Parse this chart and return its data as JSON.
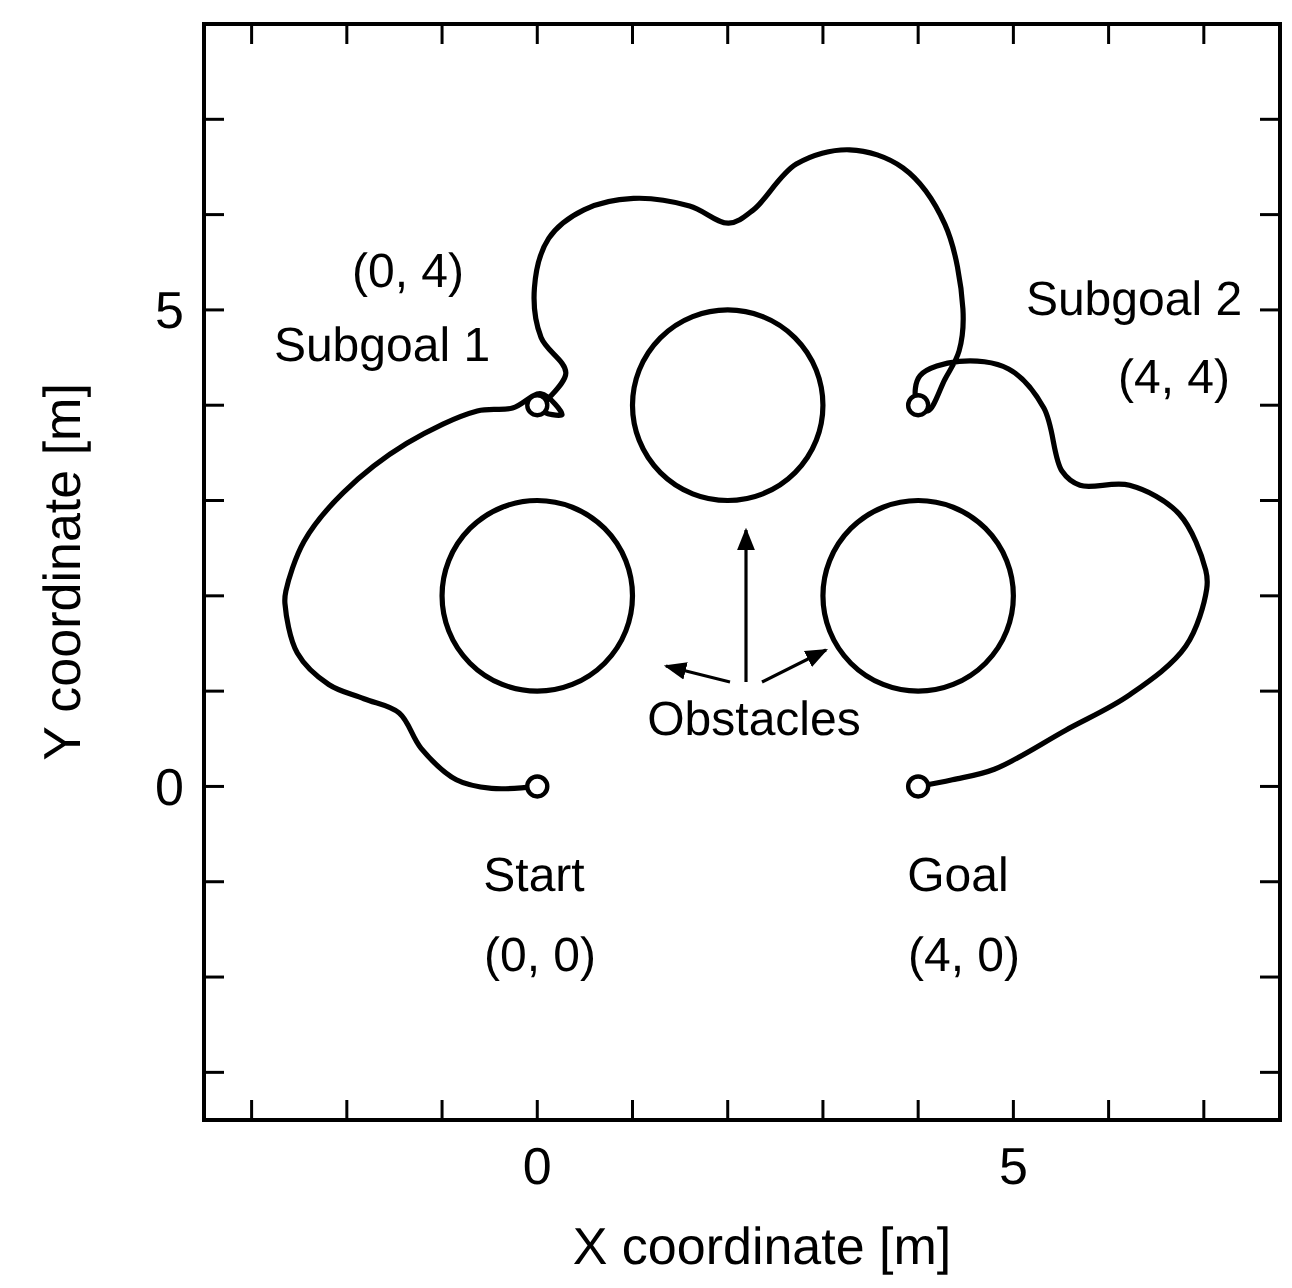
{
  "chart_data": {
    "type": "line",
    "xlabel": "X coordinate [m]",
    "ylabel": "Y coordinate [m]",
    "xlim": [
      -3.5,
      7.8
    ],
    "ylim": [
      -3.5,
      8
    ],
    "xticks": [
      {
        "value": -3,
        "label": null
      },
      {
        "value": -2,
        "label": null
      },
      {
        "value": -1,
        "label": null
      },
      0,
      {
        "value": 1,
        "label": null
      },
      {
        "value": 2,
        "label": null
      },
      {
        "value": 3,
        "label": null
      },
      {
        "value": 4,
        "label": null
      },
      5,
      {
        "value": 6,
        "label": null
      },
      {
        "value": 7,
        "label": null
      }
    ],
    "yticks": [
      {
        "value": -3,
        "label": null
      },
      {
        "value": -2,
        "label": null
      },
      {
        "value": -1,
        "label": null
      },
      0,
      {
        "value": 1,
        "label": null
      },
      {
        "value": 2,
        "label": null
      },
      {
        "value": 3,
        "label": null
      },
      {
        "value": 4,
        "label": null
      },
      5,
      {
        "value": 6,
        "label": null
      },
      {
        "value": 7,
        "label": null
      }
    ],
    "grid": false,
    "line_style": "solid",
    "series": [
      {
        "type": "line",
        "color": "#000000",
        "marker": "none",
        "x": [
          0,
          -0.48,
          -0.85,
          -1.22,
          -1.45,
          -1.82,
          -2.19,
          -2.52,
          -2.65,
          -2.64,
          -2.45,
          -2.04,
          -1.37,
          -0.63,
          -0.26,
          0.04,
          0.26,
          0.05,
          0.3,
          0.04,
          -0.03,
          0.12,
          0.49,
          1.01,
          1.6,
          2.01,
          2.27,
          2.72,
          3.28,
          3.84,
          4.28,
          4.47,
          4.43,
          4.28,
          4.1,
          3.98,
          4.02,
          4.43,
          4.95,
          5.32,
          5.51,
          5.7,
          6.22,
          6.74,
          7.02,
          7.03,
          6.81,
          6.22,
          5.55,
          4.8,
          4.36,
          4.0
        ],
        "values": [
          0,
          -0.02,
          0.07,
          0.4,
          0.77,
          0.92,
          1.07,
          1.4,
          1.92,
          2.05,
          2.57,
          3.08,
          3.6,
          3.94,
          3.97,
          4.12,
          3.9,
          3.95,
          4.34,
          4.71,
          5.23,
          5.75,
          6.05,
          6.17,
          6.09,
          5.91,
          6.05,
          6.53,
          6.68,
          6.49,
          5.9,
          5.01,
          4.57,
          4.27,
          3.94,
          4.05,
          4.31,
          4.46,
          4.38,
          3.97,
          3.31,
          3.16,
          3.16,
          2.86,
          2.27,
          2.07,
          1.47,
          0.96,
          0.59,
          0.18,
          0.07,
          0
        ]
      },
      {
        "type": "scatter",
        "color": "#000000",
        "marker": "circle",
        "x": [
          0,
          0,
          4,
          4
        ],
        "values": [
          0,
          4,
          4,
          0
        ]
      }
    ],
    "annotations": [
      "(0, 4)",
      "Subgoal 1",
      "Subgoal 2",
      "(4, 4)",
      "Obstacles",
      "Start",
      "(0, 0)",
      "Goal",
      "(4, 0)"
    ]
  }
}
